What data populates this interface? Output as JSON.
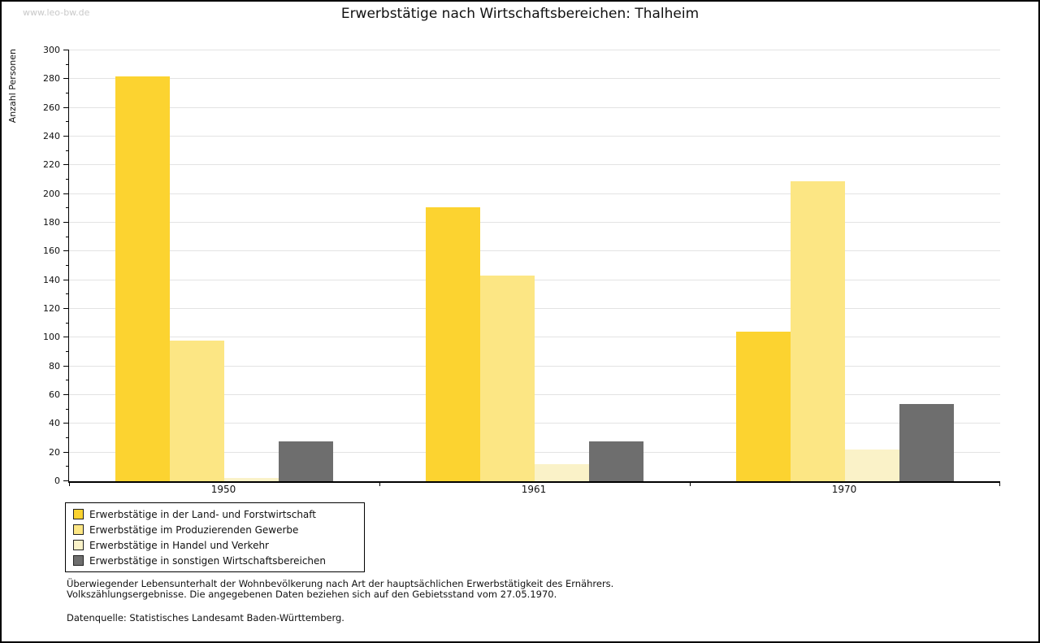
{
  "page": {
    "watermark": "www.leo-bw.de"
  },
  "chart_data": {
    "type": "bar",
    "title": "Erwerbstätige nach Wirtschaftsbereichen: Thalheim",
    "ylabel": "Anzahl Personen",
    "xlabel": "",
    "categories": [
      "1950",
      "1961",
      "1970"
    ],
    "series": [
      {
        "name": "Erwerbstätige in der Land- und Forstwirtschaft",
        "color": "#FCD330",
        "values": [
          282,
          191,
          104
        ]
      },
      {
        "name": "Erwerbstätige im Produzierenden Gewerbe",
        "color": "#FCE684",
        "values": [
          98,
          143,
          209
        ]
      },
      {
        "name": "Erwerbstätige in Handel und Verkehr",
        "color": "#FAF2C8",
        "values": [
          2,
          12,
          22
        ]
      },
      {
        "name": "Erwerbstätige in sonstigen Wirtschaftsbereichen",
        "color": "#6E6E6E",
        "values": [
          28,
          28,
          54
        ]
      }
    ],
    "ylim": [
      0,
      300
    ],
    "ytick_step": 20,
    "minor_tick_step": 10,
    "grid": true,
    "legend_position": "bottom-left",
    "gridline_color": "#E3E3E3"
  },
  "footer": {
    "line1": "Überwiegender Lebensunterhalt der Wohnbevölkerung nach Art der hauptsächlichen Erwerbstätigkeit des Ernährers.",
    "line2": "Volkszählungsergebnisse. Die angegebenen Daten beziehen sich auf den Gebietsstand vom 27.05.1970.",
    "line3": "Datenquelle: Statistisches Landesamt Baden-Württemberg."
  }
}
